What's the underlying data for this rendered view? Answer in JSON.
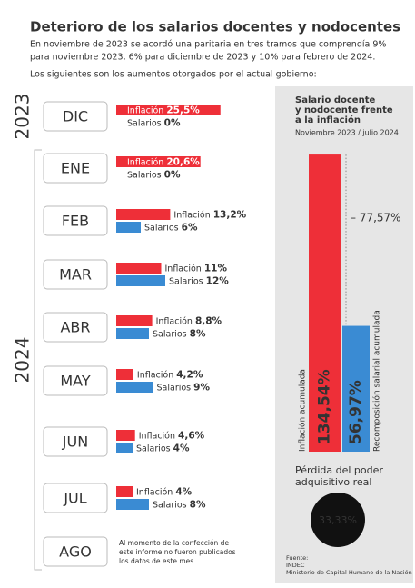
{
  "title": "Deterioro de los salarios docentes y nodocentes",
  "subtitle": [
    "En noviembre de 2023 se acordó una paritaria en tres tramos que comprendía 9%",
    "para noviembre 2023, 6% para diciembre de 2023 y 10% para febrero de 2024."
  ],
  "intro": "Los siguientes son los aumentos otorgados por el actual gobierno:",
  "chart_data": [
    {
      "type": "hbar",
      "categories": [
        "DIC",
        "ENE",
        "FEB",
        "MAR",
        "ABR",
        "MAY",
        "JUN",
        "JUL",
        "AGO"
      ],
      "groups": [
        {
          "label": "2023",
          "categories": [
            "DIC"
          ]
        },
        {
          "label": "2024",
          "categories": [
            "ENE",
            "FEB",
            "MAR",
            "ABR",
            "MAY",
            "JUN",
            "JUL",
            "AGO"
          ]
        }
      ],
      "series": [
        {
          "name": "Inflación",
          "color": "#ee2f38",
          "values": [
            25.5,
            20.6,
            13.2,
            11,
            8.8,
            4.2,
            4.6,
            4,
            null
          ],
          "value_labels": [
            "25,5%",
            "20,6%",
            "13,2%",
            "11%",
            "8,8%",
            "4,2%",
            "4,6%",
            "4%",
            null
          ]
        },
        {
          "name": "Salarios",
          "color": "#3a8bd3",
          "values": [
            0,
            0,
            6,
            12,
            8,
            9,
            4,
            8,
            null
          ],
          "value_labels": [
            "0%",
            "0%",
            "6%",
            "12%",
            "8%",
            "9%",
            "4%",
            "8%",
            null
          ]
        }
      ],
      "note": [
        "Al momento de la confección de",
        "este informe no fueron publicados",
        "los datos de este mes."
      ]
    },
    {
      "type": "vbar",
      "title": [
        "Salario docente",
        "y nodocente frente",
        "a la inflación"
      ],
      "subtitle": "Noviembre 2023 / julio 2024",
      "categories": [
        "Inflación acumulada",
        "Recomposición salarial acumulada"
      ],
      "values": [
        134.54,
        56.97
      ],
      "value_labels": [
        "134,54%",
        "56,97%"
      ],
      "colors": [
        "#ee2f38",
        "#3a8bd3"
      ],
      "annotation": "– 77,57%"
    }
  ],
  "loss": {
    "label": [
      "Pérdida del poder",
      "adquisitivo real"
    ],
    "value": 33.33,
    "value_label": "33,33%"
  },
  "source": [
    "Fuente:",
    "INDEC",
    "Ministerio de Capital Humano de la Nación"
  ]
}
